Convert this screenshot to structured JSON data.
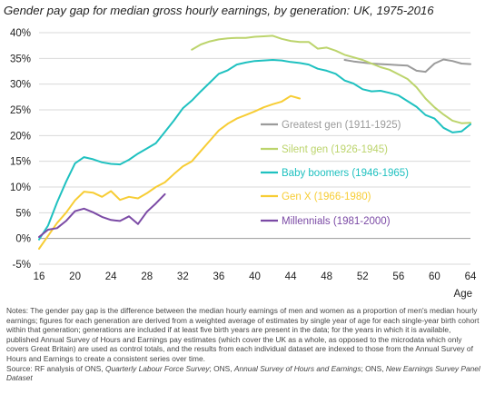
{
  "title": "Gender pay gap for median gross hourly earnings, by generation: UK, 1975-2016",
  "notes": "Notes: The gender pay gap is the difference between the median hourly earnings of men and women as a proportion of men's median hourly earnings; figures for each generation are derived from a weighted average of estimates by single year of age for each single-year birth cohort within that generation; generations are included if at least five birth years are present in the data; for the years in which it is available, published Annual Survey of Hours and Earnings pay estimates (which cover the UK as a whole, as opposed to the microdata which only covers Great Britain) are used as control totals, and the results from each individual dataset are indexed to those from the Annual Survey of Hours and Earnings to create a consistent series over time.",
  "source": {
    "prefix": "Source: RF analysis of ONS, ",
    "lfs": "Quarterly Labour Force Survey",
    "sep1": "; ONS, ",
    "ashe": "Annual Survey of Hours and Earnings",
    "sep2": "; ONS, ",
    "nes": "New Earnings Survey Panel Dataset"
  },
  "chart_data": {
    "type": "line",
    "title": "Gender pay gap for median gross hourly earnings, by generation: UK, 1975-2016",
    "xlabel": "Age",
    "ylabel": "",
    "xlim": [
      16,
      64
    ],
    "ylim": [
      -5,
      40
    ],
    "x_ticks": [
      16,
      20,
      24,
      28,
      32,
      36,
      40,
      44,
      48,
      52,
      56,
      60,
      64
    ],
    "y_ticks": [
      -5,
      0,
      5,
      10,
      15,
      20,
      25,
      30,
      35,
      40
    ],
    "y_tick_labels": [
      "-5%",
      "0%",
      "5%",
      "10%",
      "15%",
      "20%",
      "25%",
      "30%",
      "35%",
      "40%"
    ],
    "grid": "horizontal",
    "legend_position": "right",
    "series": [
      {
        "name": "Greatest gen (1911-1925)",
        "color": "#9b9b9b",
        "points": [
          [
            50,
            34.7
          ],
          [
            51,
            34.4
          ],
          [
            52,
            34.2
          ],
          [
            53,
            34.0
          ],
          [
            54,
            33.9
          ],
          [
            55,
            33.8
          ],
          [
            56,
            33.7
          ],
          [
            57,
            33.6
          ],
          [
            58,
            32.6
          ],
          [
            59,
            32.4
          ],
          [
            60,
            34.0
          ],
          [
            61,
            34.8
          ],
          [
            62,
            34.5
          ],
          [
            63,
            34.0
          ],
          [
            64,
            33.9
          ]
        ]
      },
      {
        "name": "Silent gen (1926-1945)",
        "color": "#bcd46c",
        "points": [
          [
            33,
            36.7
          ],
          [
            34,
            37.7
          ],
          [
            35,
            38.3
          ],
          [
            36,
            38.7
          ],
          [
            37,
            38.9
          ],
          [
            38,
            39.0
          ],
          [
            39,
            39.0
          ],
          [
            40,
            39.2
          ],
          [
            41,
            39.3
          ],
          [
            42,
            39.4
          ],
          [
            43,
            38.8
          ],
          [
            44,
            38.4
          ],
          [
            45,
            38.2
          ],
          [
            46,
            38.2
          ],
          [
            47,
            36.9
          ],
          [
            48,
            37.1
          ],
          [
            49,
            36.5
          ],
          [
            50,
            35.7
          ],
          [
            51,
            35.2
          ],
          [
            52,
            34.7
          ],
          [
            53,
            34.0
          ],
          [
            54,
            33.3
          ],
          [
            55,
            32.8
          ],
          [
            56,
            31.9
          ],
          [
            57,
            31.0
          ],
          [
            58,
            29.4
          ],
          [
            59,
            27.2
          ],
          [
            60,
            25.5
          ],
          [
            61,
            24.1
          ],
          [
            62,
            22.9
          ],
          [
            63,
            22.4
          ],
          [
            64,
            22.5
          ]
        ]
      },
      {
        "name": "Baby boomers (1946-1965)",
        "color": "#1fc1c0",
        "points": [
          [
            16,
            -0.2
          ],
          [
            17,
            2.5
          ],
          [
            18,
            7.0
          ],
          [
            19,
            11.0
          ],
          [
            20,
            14.6
          ],
          [
            21,
            15.8
          ],
          [
            22,
            15.4
          ],
          [
            23,
            14.8
          ],
          [
            24,
            14.5
          ],
          [
            25,
            14.4
          ],
          [
            26,
            15.3
          ],
          [
            27,
            16.5
          ],
          [
            28,
            17.5
          ],
          [
            29,
            18.5
          ],
          [
            30,
            20.7
          ],
          [
            31,
            22.9
          ],
          [
            32,
            25.3
          ],
          [
            33,
            26.8
          ],
          [
            34,
            28.6
          ],
          [
            35,
            30.3
          ],
          [
            36,
            32.0
          ],
          [
            37,
            32.7
          ],
          [
            38,
            33.8
          ],
          [
            39,
            34.2
          ],
          [
            40,
            34.5
          ],
          [
            41,
            34.6
          ],
          [
            42,
            34.7
          ],
          [
            43,
            34.6
          ],
          [
            44,
            34.3
          ],
          [
            45,
            34.1
          ],
          [
            46,
            33.8
          ],
          [
            47,
            33.0
          ],
          [
            48,
            32.6
          ],
          [
            49,
            32.0
          ],
          [
            50,
            30.7
          ],
          [
            51,
            30.1
          ],
          [
            52,
            29.0
          ],
          [
            53,
            28.6
          ],
          [
            54,
            28.7
          ],
          [
            55,
            28.3
          ],
          [
            56,
            27.8
          ],
          [
            57,
            26.7
          ],
          [
            58,
            25.6
          ],
          [
            59,
            24.0
          ],
          [
            60,
            23.3
          ],
          [
            61,
            21.5
          ],
          [
            62,
            20.6
          ],
          [
            63,
            20.8
          ],
          [
            64,
            22.2
          ]
        ]
      },
      {
        "name": "Gen X (1966-1980)",
        "color": "#f7cd35",
        "points": [
          [
            16,
            -2.0
          ],
          [
            17,
            0.5
          ],
          [
            18,
            3.0
          ],
          [
            19,
            5.0
          ],
          [
            20,
            7.4
          ],
          [
            21,
            9.1
          ],
          [
            22,
            8.9
          ],
          [
            23,
            8.1
          ],
          [
            24,
            9.2
          ],
          [
            25,
            7.5
          ],
          [
            26,
            8.1
          ],
          [
            27,
            7.8
          ],
          [
            28,
            8.8
          ],
          [
            29,
            10.0
          ],
          [
            30,
            10.9
          ],
          [
            31,
            12.5
          ],
          [
            32,
            14.0
          ],
          [
            33,
            15.0
          ],
          [
            34,
            17.0
          ],
          [
            35,
            19.0
          ],
          [
            36,
            21.0
          ],
          [
            37,
            22.3
          ],
          [
            38,
            23.3
          ],
          [
            39,
            24.0
          ],
          [
            40,
            24.7
          ],
          [
            41,
            25.5
          ],
          [
            42,
            26.1
          ],
          [
            43,
            26.6
          ],
          [
            44,
            27.7
          ],
          [
            45,
            27.2
          ]
        ]
      },
      {
        "name": "Millennials (1981-2000)",
        "color": "#7b4aa5",
        "points": [
          [
            16,
            0.3
          ],
          [
            17,
            1.7
          ],
          [
            18,
            2.0
          ],
          [
            19,
            3.4
          ],
          [
            20,
            5.3
          ],
          [
            21,
            5.8
          ],
          [
            22,
            5.1
          ],
          [
            23,
            4.2
          ],
          [
            24,
            3.6
          ],
          [
            25,
            3.4
          ],
          [
            26,
            4.3
          ],
          [
            27,
            2.8
          ],
          [
            28,
            5.2
          ],
          [
            29,
            6.8
          ],
          [
            30,
            8.6
          ]
        ]
      }
    ]
  }
}
